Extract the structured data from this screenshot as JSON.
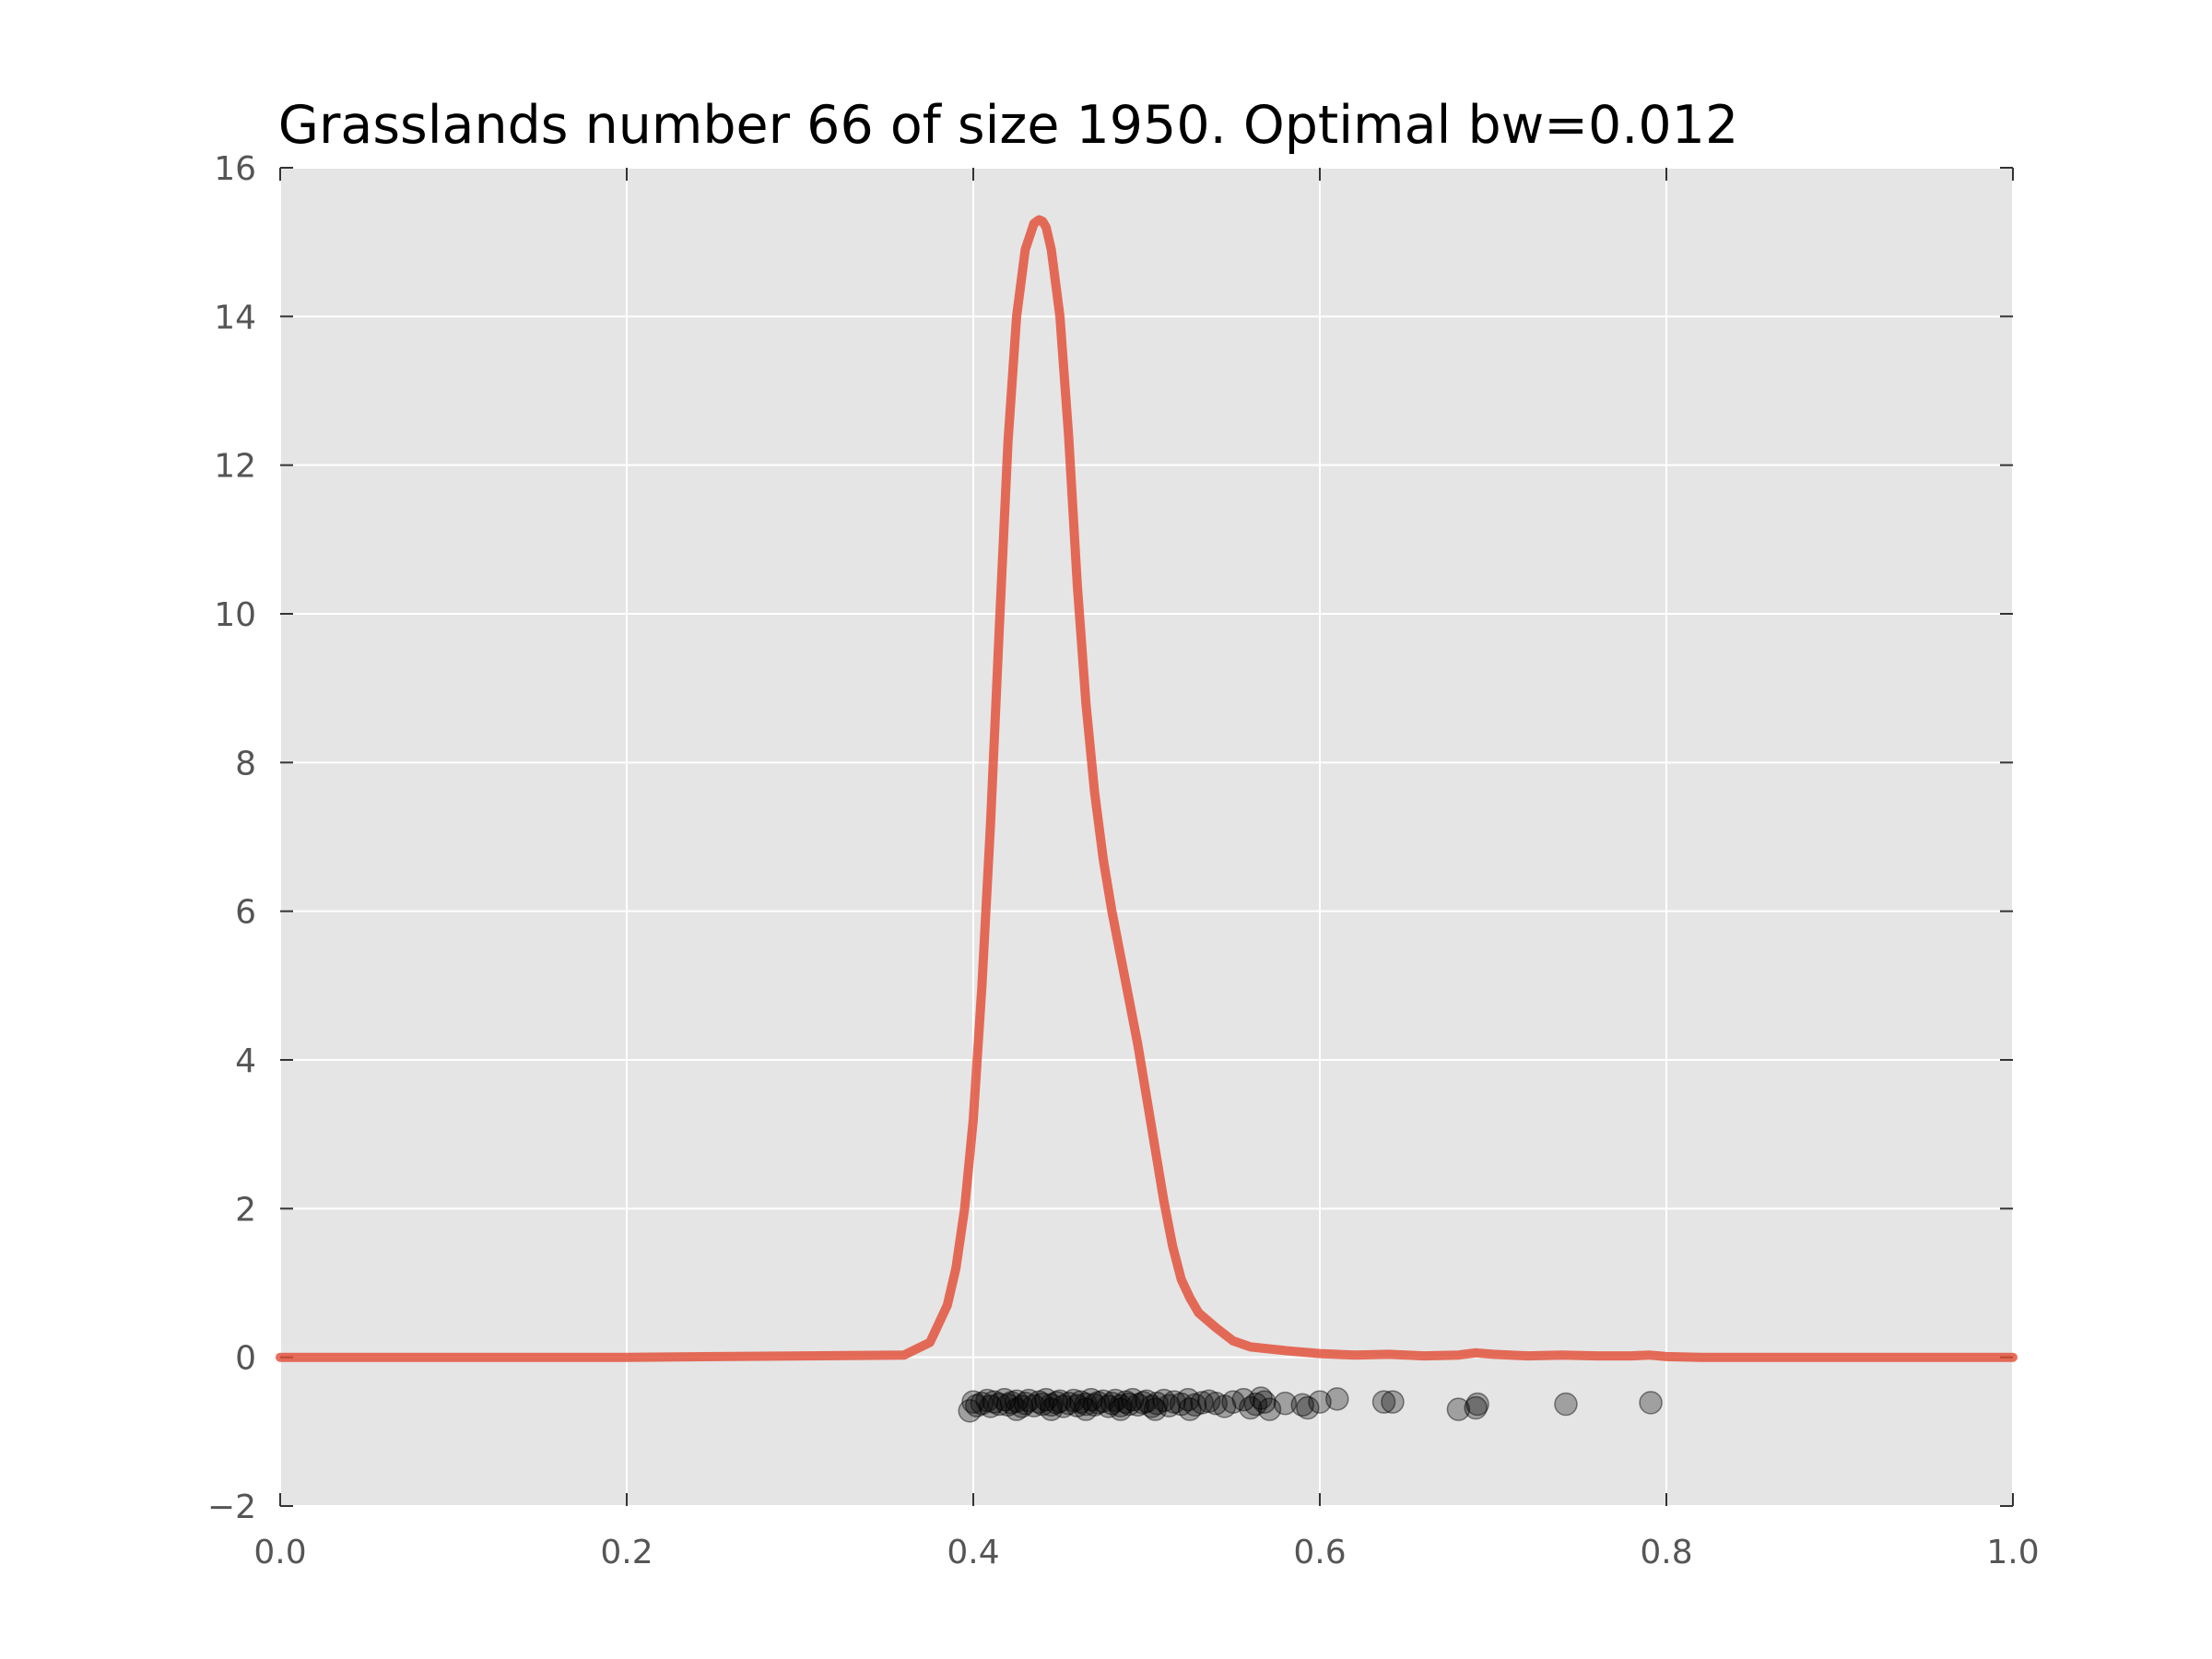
{
  "chart_data": {
    "type": "line",
    "title": "Grasslands number 66 of size 1950. Optimal bw=0.012",
    "xlabel": "",
    "ylabel": "",
    "xlim": [
      0.0,
      1.0
    ],
    "ylim": [
      -2,
      16
    ],
    "grid": true,
    "x_ticks": [
      "0.0",
      "0.2",
      "0.4",
      "0.6",
      "0.8",
      "1.0"
    ],
    "y_ticks": [
      "−2",
      "0",
      "2",
      "4",
      "6",
      "8",
      "10",
      "12",
      "14",
      "16"
    ],
    "colors": {
      "plot_background": "#e5e5e5",
      "density_line": "#e24a33",
      "sample_points": "#000000"
    },
    "series": [
      {
        "type": "line",
        "x": [
          0.0,
          0.2,
          0.36,
          0.375,
          0.385,
          0.39,
          0.395,
          0.4,
          0.405,
          0.41,
          0.415,
          0.42,
          0.425,
          0.43,
          0.435,
          0.438,
          0.44,
          0.442,
          0.445,
          0.45,
          0.455,
          0.46,
          0.465,
          0.47,
          0.475,
          0.48,
          0.485,
          0.49,
          0.495,
          0.5,
          0.505,
          0.51,
          0.515,
          0.52,
          0.525,
          0.53,
          0.54,
          0.55,
          0.56,
          0.58,
          0.6,
          0.62,
          0.64,
          0.66,
          0.68,
          0.69,
          0.7,
          0.72,
          0.74,
          0.76,
          0.78,
          0.79,
          0.8,
          0.82,
          0.85,
          0.9,
          1.0
        ],
        "y": [
          0.0,
          0.0,
          0.03,
          0.2,
          0.7,
          1.2,
          2.0,
          3.2,
          5.0,
          7.2,
          9.8,
          12.3,
          14.0,
          14.9,
          15.25,
          15.3,
          15.28,
          15.2,
          14.9,
          14.0,
          12.4,
          10.4,
          8.8,
          7.6,
          6.7,
          6.0,
          5.4,
          4.8,
          4.2,
          3.5,
          2.8,
          2.1,
          1.5,
          1.05,
          0.8,
          0.6,
          0.4,
          0.22,
          0.14,
          0.09,
          0.05,
          0.03,
          0.04,
          0.02,
          0.03,
          0.06,
          0.04,
          0.02,
          0.03,
          0.02,
          0.02,
          0.03,
          0.01,
          0.0,
          0.0,
          0.0,
          0.0
        ]
      },
      {
        "type": "scatter",
        "x": [
          0.4,
          0.402,
          0.405,
          0.408,
          0.41,
          0.412,
          0.415,
          0.418,
          0.42,
          0.422,
          0.425,
          0.428,
          0.43,
          0.432,
          0.435,
          0.438,
          0.44,
          0.442,
          0.445,
          0.448,
          0.45,
          0.452,
          0.455,
          0.458,
          0.46,
          0.462,
          0.465,
          0.468,
          0.47,
          0.472,
          0.475,
          0.478,
          0.48,
          0.482,
          0.485,
          0.488,
          0.49,
          0.492,
          0.495,
          0.498,
          0.5,
          0.503,
          0.506,
          0.51,
          0.513,
          0.516,
          0.52,
          0.524,
          0.528,
          0.532,
          0.536,
          0.54,
          0.545,
          0.55,
          0.556,
          0.56,
          0.563,
          0.566,
          0.568,
          0.571,
          0.58,
          0.59,
          0.593,
          0.6,
          0.61,
          0.637,
          0.642,
          0.68,
          0.69,
          0.691,
          0.742,
          0.791,
          0.398,
          0.425,
          0.445,
          0.465,
          0.485,
          0.505,
          0.525
        ],
        "y": [
          -0.6,
          -0.65,
          -0.62,
          -0.58,
          -0.66,
          -0.6,
          -0.63,
          -0.57,
          -0.64,
          -0.61,
          -0.59,
          -0.66,
          -0.62,
          -0.58,
          -0.65,
          -0.6,
          -0.63,
          -0.57,
          -0.64,
          -0.61,
          -0.59,
          -0.66,
          -0.62,
          -0.58,
          -0.65,
          -0.6,
          -0.63,
          -0.57,
          -0.64,
          -0.61,
          -0.59,
          -0.66,
          -0.62,
          -0.58,
          -0.65,
          -0.6,
          -0.63,
          -0.57,
          -0.64,
          -0.61,
          -0.59,
          -0.66,
          -0.62,
          -0.58,
          -0.65,
          -0.6,
          -0.63,
          -0.57,
          -0.64,
          -0.61,
          -0.59,
          -0.62,
          -0.66,
          -0.6,
          -0.57,
          -0.68,
          -0.63,
          -0.55,
          -0.6,
          -0.7,
          -0.62,
          -0.64,
          -0.68,
          -0.6,
          -0.56,
          -0.6,
          -0.6,
          -0.7,
          -0.68,
          -0.63,
          -0.63,
          -0.61,
          -0.72,
          -0.7,
          -0.7,
          -0.7,
          -0.7,
          -0.7,
          -0.7
        ]
      }
    ]
  }
}
